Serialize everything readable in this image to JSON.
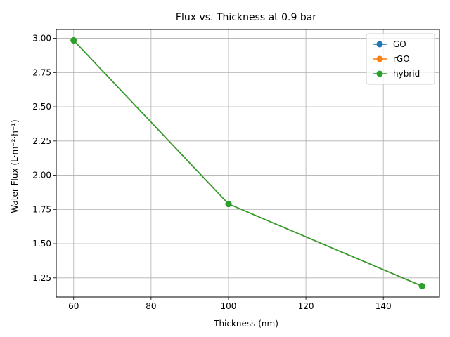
{
  "chart_data": {
    "type": "line",
    "title": "Flux vs. Thickness at 0.9 bar",
    "xlabel": "Thickness (nm)",
    "ylabel": "Water Flux (L·m⁻²·h⁻¹)",
    "x": [
      60,
      100,
      150
    ],
    "xlim": [
      55.5,
      154.5
    ],
    "ylim": [
      1.1105,
      3.0645
    ],
    "xticks": [
      60,
      80,
      100,
      120,
      140
    ],
    "xtick_labels": [
      "60",
      "80",
      "100",
      "120",
      "140"
    ],
    "yticks": [
      1.25,
      1.5,
      1.75,
      2.0,
      2.25,
      2.5,
      2.75,
      3.0
    ],
    "ytick_labels": [
      "1.25",
      "1.50",
      "1.75",
      "2.00",
      "2.25",
      "2.50",
      "2.75",
      "3.00"
    ],
    "grid": true,
    "legend_position": "top-right",
    "series": [
      {
        "name": "GO",
        "color": "#1f77b4",
        "values": [
          2.985,
          1.79,
          1.19
        ]
      },
      {
        "name": "rGO",
        "color": "#ff7f0e",
        "values": [
          2.985,
          1.79,
          1.19
        ]
      },
      {
        "name": "hybrid",
        "color": "#2ca02c",
        "values": [
          2.985,
          1.79,
          1.19
        ]
      }
    ]
  }
}
